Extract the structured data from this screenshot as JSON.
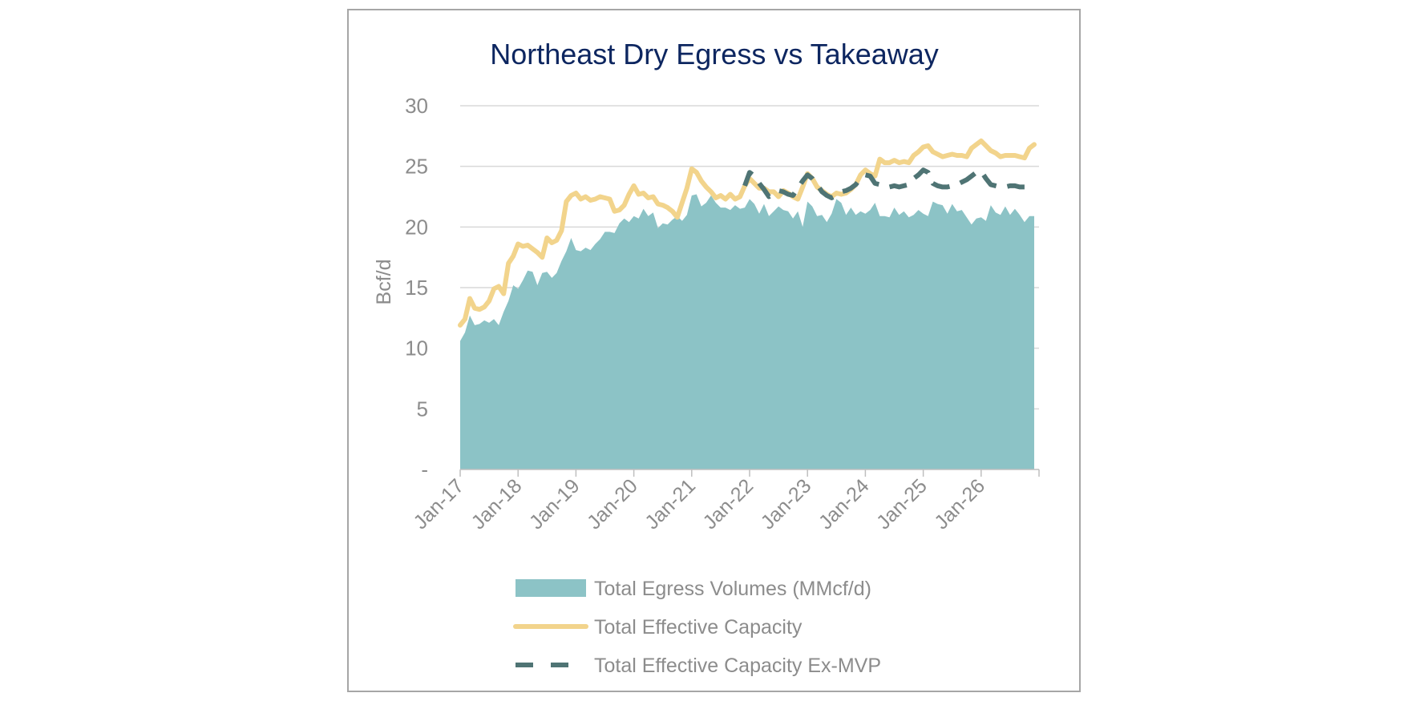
{
  "chart_data": {
    "type": "area",
    "title": "Northeast Dry Egress vs Takeaway",
    "xlabel": "",
    "ylabel": "Bcf/d",
    "ylim": [
      0,
      30
    ],
    "y_ticks": [
      0,
      5,
      10,
      15,
      20,
      25,
      30
    ],
    "y_tick_labels": [
      "-",
      "5",
      "10",
      "15",
      "20",
      "25",
      "30"
    ],
    "x_range_months": [
      0,
      120
    ],
    "x_tick_labels": [
      "Jan-17",
      "Jan-18",
      "Jan-19",
      "Jan-20",
      "Jan-21",
      "Jan-22",
      "Jan-23",
      "Jan-24",
      "Jan-25",
      "Jan-26"
    ],
    "x_tick_months": [
      0,
      12,
      24,
      36,
      48,
      60,
      72,
      84,
      96,
      108
    ],
    "grid": true,
    "legend_position": "bottom",
    "colors": {
      "title": "#0d2660",
      "egress": "#8cc3c6",
      "capacity": "#f2d48c",
      "ex_mvp": "#4f7474",
      "grid": "#d9d9d9",
      "axis": "#bfbfbf",
      "text": "#8c8c8c"
    },
    "series": [
      {
        "name": "Total Egress Volumes (MMcf/d)",
        "style": "area",
        "points": [
          [
            0,
            10.6
          ],
          [
            1,
            11.3
          ],
          [
            2,
            12.7
          ],
          [
            3,
            11.9
          ],
          [
            4,
            12.0
          ],
          [
            5,
            12.3
          ],
          [
            6,
            12.1
          ],
          [
            7,
            12.4
          ],
          [
            8,
            11.9
          ],
          [
            9,
            13.0
          ],
          [
            10,
            13.9
          ],
          [
            11,
            15.2
          ],
          [
            12,
            14.9
          ],
          [
            13,
            15.6
          ],
          [
            14,
            16.4
          ],
          [
            15,
            16.3
          ],
          [
            16,
            15.2
          ],
          [
            17,
            16.2
          ],
          [
            18,
            16.3
          ],
          [
            19,
            15.8
          ],
          [
            20,
            16.2
          ],
          [
            21,
            17.2
          ],
          [
            22,
            18.0
          ],
          [
            23,
            19.1
          ],
          [
            24,
            18.1
          ],
          [
            25,
            18.0
          ],
          [
            26,
            18.3
          ],
          [
            27,
            18.1
          ],
          [
            28,
            18.6
          ],
          [
            29,
            19.0
          ],
          [
            30,
            19.6
          ],
          [
            31,
            19.6
          ],
          [
            32,
            19.5
          ],
          [
            33,
            20.3
          ],
          [
            34,
            20.7
          ],
          [
            35,
            20.4
          ],
          [
            36,
            20.9
          ],
          [
            37,
            20.7
          ],
          [
            38,
            21.5
          ],
          [
            39,
            20.9
          ],
          [
            40,
            21.2
          ],
          [
            41,
            19.9
          ],
          [
            42,
            20.3
          ],
          [
            43,
            20.2
          ],
          [
            44,
            20.6
          ],
          [
            45,
            20.9
          ],
          [
            46,
            20.5
          ],
          [
            47,
            21.0
          ],
          [
            48,
            22.6
          ],
          [
            49,
            22.7
          ],
          [
            50,
            21.7
          ],
          [
            51,
            22.0
          ],
          [
            52,
            22.6
          ],
          [
            53,
            22.0
          ],
          [
            54,
            21.6
          ],
          [
            55,
            21.6
          ],
          [
            56,
            21.4
          ],
          [
            57,
            21.8
          ],
          [
            58,
            21.5
          ],
          [
            59,
            21.6
          ],
          [
            60,
            22.3
          ],
          [
            61,
            21.9
          ],
          [
            62,
            21.1
          ],
          [
            63,
            21.9
          ],
          [
            64,
            20.9
          ],
          [
            65,
            21.3
          ],
          [
            66,
            21.7
          ],
          [
            67,
            21.4
          ],
          [
            68,
            21.3
          ],
          [
            69,
            20.7
          ],
          [
            70,
            21.3
          ],
          [
            71,
            20.0
          ],
          [
            72,
            22.1
          ],
          [
            73,
            21.7
          ],
          [
            74,
            20.9
          ],
          [
            75,
            21.0
          ],
          [
            76,
            20.4
          ],
          [
            77,
            21.1
          ],
          [
            78,
            22.3
          ],
          [
            79,
            22.0
          ],
          [
            80,
            21.0
          ],
          [
            81,
            21.6
          ],
          [
            82,
            21.0
          ],
          [
            83,
            21.3
          ],
          [
            84,
            21.1
          ],
          [
            85,
            21.4
          ],
          [
            86,
            22.0
          ],
          [
            87,
            20.9
          ],
          [
            88,
            20.9
          ],
          [
            89,
            20.8
          ],
          [
            90,
            21.6
          ],
          [
            91,
            21.0
          ],
          [
            92,
            21.3
          ],
          [
            93,
            20.8
          ],
          [
            94,
            21.0
          ],
          [
            95,
            21.4
          ],
          [
            96,
            21.1
          ],
          [
            97,
            20.9
          ],
          [
            98,
            22.1
          ],
          [
            99,
            21.9
          ],
          [
            100,
            21.8
          ],
          [
            101,
            21.1
          ],
          [
            102,
            21.9
          ],
          [
            103,
            21.3
          ],
          [
            104,
            21.4
          ],
          [
            105,
            20.8
          ],
          [
            106,
            20.2
          ],
          [
            107,
            20.7
          ],
          [
            108,
            20.8
          ],
          [
            109,
            20.5
          ],
          [
            110,
            21.8
          ],
          [
            111,
            21.2
          ],
          [
            112,
            21.0
          ],
          [
            113,
            21.7
          ],
          [
            114,
            21.0
          ],
          [
            115,
            21.5
          ],
          [
            116,
            21.0
          ],
          [
            117,
            20.4
          ],
          [
            118,
            20.9
          ],
          [
            119,
            20.9
          ]
        ]
      },
      {
        "name": "Total Effective Capacity",
        "style": "solid",
        "points": [
          [
            0,
            11.9
          ],
          [
            1,
            12.4
          ],
          [
            2,
            14.1
          ],
          [
            3,
            13.3
          ],
          [
            4,
            13.2
          ],
          [
            5,
            13.4
          ],
          [
            6,
            13.9
          ],
          [
            7,
            14.9
          ],
          [
            8,
            15.1
          ],
          [
            9,
            14.5
          ],
          [
            10,
            17.0
          ],
          [
            11,
            17.6
          ],
          [
            12,
            18.6
          ],
          [
            13,
            18.4
          ],
          [
            14,
            18.5
          ],
          [
            15,
            18.2
          ],
          [
            16,
            17.9
          ],
          [
            17,
            17.5
          ],
          [
            18,
            19.1
          ],
          [
            19,
            18.7
          ],
          [
            20,
            18.9
          ],
          [
            21,
            19.7
          ],
          [
            22,
            22.1
          ],
          [
            23,
            22.6
          ],
          [
            24,
            22.8
          ],
          [
            25,
            22.3
          ],
          [
            26,
            22.5
          ],
          [
            27,
            22.2
          ],
          [
            28,
            22.3
          ],
          [
            29,
            22.5
          ],
          [
            30,
            22.4
          ],
          [
            31,
            22.3
          ],
          [
            32,
            21.3
          ],
          [
            33,
            21.4
          ],
          [
            34,
            21.8
          ],
          [
            35,
            22.7
          ],
          [
            36,
            23.4
          ],
          [
            37,
            22.7
          ],
          [
            38,
            22.8
          ],
          [
            39,
            22.4
          ],
          [
            40,
            22.5
          ],
          [
            41,
            21.9
          ],
          [
            42,
            21.8
          ],
          [
            43,
            21.6
          ],
          [
            44,
            21.3
          ],
          [
            45,
            20.8
          ],
          [
            46,
            22.0
          ],
          [
            47,
            23.2
          ],
          [
            48,
            24.8
          ],
          [
            49,
            24.5
          ],
          [
            50,
            23.8
          ],
          [
            51,
            23.3
          ],
          [
            52,
            22.9
          ],
          [
            53,
            22.4
          ],
          [
            54,
            22.6
          ],
          [
            55,
            22.3
          ],
          [
            56,
            22.7
          ],
          [
            57,
            22.3
          ],
          [
            58,
            22.5
          ],
          [
            59,
            23.4
          ],
          [
            60,
            24.0
          ],
          [
            61,
            23.6
          ],
          [
            62,
            23.2
          ],
          [
            63,
            23.2
          ],
          [
            64,
            22.9
          ],
          [
            65,
            22.9
          ],
          [
            66,
            22.5
          ],
          [
            67,
            23.0
          ],
          [
            68,
            22.8
          ],
          [
            69,
            22.5
          ],
          [
            70,
            22.3
          ],
          [
            71,
            23.3
          ],
          [
            72,
            24.4
          ],
          [
            73,
            24.0
          ],
          [
            74,
            23.3
          ],
          [
            75,
            23.0
          ],
          [
            76,
            22.7
          ],
          [
            77,
            22.5
          ],
          [
            78,
            22.8
          ],
          [
            79,
            22.7
          ],
          [
            80,
            22.8
          ],
          [
            81,
            23.1
          ],
          [
            82,
            23.5
          ],
          [
            83,
            24.3
          ],
          [
            84,
            24.7
          ],
          [
            85,
            24.4
          ],
          [
            86,
            24.2
          ],
          [
            87,
            25.6
          ],
          [
            88,
            25.3
          ],
          [
            89,
            25.3
          ],
          [
            90,
            25.5
          ],
          [
            91,
            25.3
          ],
          [
            92,
            25.4
          ],
          [
            93,
            25.3
          ],
          [
            94,
            25.9
          ],
          [
            95,
            26.2
          ],
          [
            96,
            26.6
          ],
          [
            97,
            26.7
          ],
          [
            98,
            26.2
          ],
          [
            99,
            26.0
          ],
          [
            100,
            25.8
          ],
          [
            101,
            25.9
          ],
          [
            102,
            26.0
          ],
          [
            103,
            25.9
          ],
          [
            104,
            25.9
          ],
          [
            105,
            25.8
          ],
          [
            106,
            26.5
          ],
          [
            107,
            26.8
          ],
          [
            108,
            27.1
          ],
          [
            109,
            26.7
          ],
          [
            110,
            26.3
          ],
          [
            111,
            26.1
          ],
          [
            112,
            25.8
          ],
          [
            113,
            25.9
          ],
          [
            114,
            25.9
          ],
          [
            115,
            25.9
          ],
          [
            116,
            25.8
          ],
          [
            117,
            25.7
          ],
          [
            118,
            26.5
          ],
          [
            119,
            26.8
          ]
        ]
      },
      {
        "name": "Total Effective Capacity Ex-MVP",
        "style": "dashed",
        "points": [
          [
            59,
            23.4
          ],
          [
            60,
            24.5
          ],
          [
            61,
            24.2
          ],
          [
            62,
            23.6
          ],
          [
            63,
            23.1
          ],
          [
            64,
            22.5
          ],
          [
            65,
            22.7
          ],
          [
            66,
            23.0
          ],
          [
            67,
            22.9
          ],
          [
            68,
            22.7
          ],
          [
            69,
            22.6
          ],
          [
            70,
            23.2
          ],
          [
            71,
            23.8
          ],
          [
            72,
            24.3
          ],
          [
            73,
            24.0
          ],
          [
            74,
            23.5
          ],
          [
            75,
            22.9
          ],
          [
            76,
            22.6
          ],
          [
            77,
            22.4
          ],
          [
            78,
            22.6
          ],
          [
            79,
            22.9
          ],
          [
            80,
            23.0
          ],
          [
            81,
            23.2
          ],
          [
            82,
            23.5
          ],
          [
            83,
            24.0
          ],
          [
            84,
            24.3
          ],
          [
            85,
            24.2
          ],
          [
            86,
            23.6
          ],
          [
            87,
            23.5
          ],
          [
            88,
            23.3
          ],
          [
            89,
            23.3
          ],
          [
            90,
            23.4
          ],
          [
            91,
            23.3
          ],
          [
            92,
            23.4
          ],
          [
            93,
            23.5
          ],
          [
            94,
            24.0
          ],
          [
            95,
            24.3
          ],
          [
            96,
            24.7
          ],
          [
            97,
            24.5
          ],
          [
            98,
            23.6
          ],
          [
            99,
            23.4
          ],
          [
            100,
            23.3
          ],
          [
            101,
            23.3
          ],
          [
            102,
            23.4
          ],
          [
            103,
            23.5
          ],
          [
            104,
            23.7
          ],
          [
            105,
            23.9
          ],
          [
            106,
            24.2
          ],
          [
            107,
            24.5
          ],
          [
            108,
            24.6
          ],
          [
            109,
            24.0
          ],
          [
            110,
            23.5
          ],
          [
            111,
            23.4
          ],
          [
            112,
            23.3
          ],
          [
            113,
            23.3
          ],
          [
            114,
            23.4
          ],
          [
            115,
            23.4
          ],
          [
            116,
            23.3
          ],
          [
            117,
            23.3
          ]
        ]
      }
    ]
  }
}
